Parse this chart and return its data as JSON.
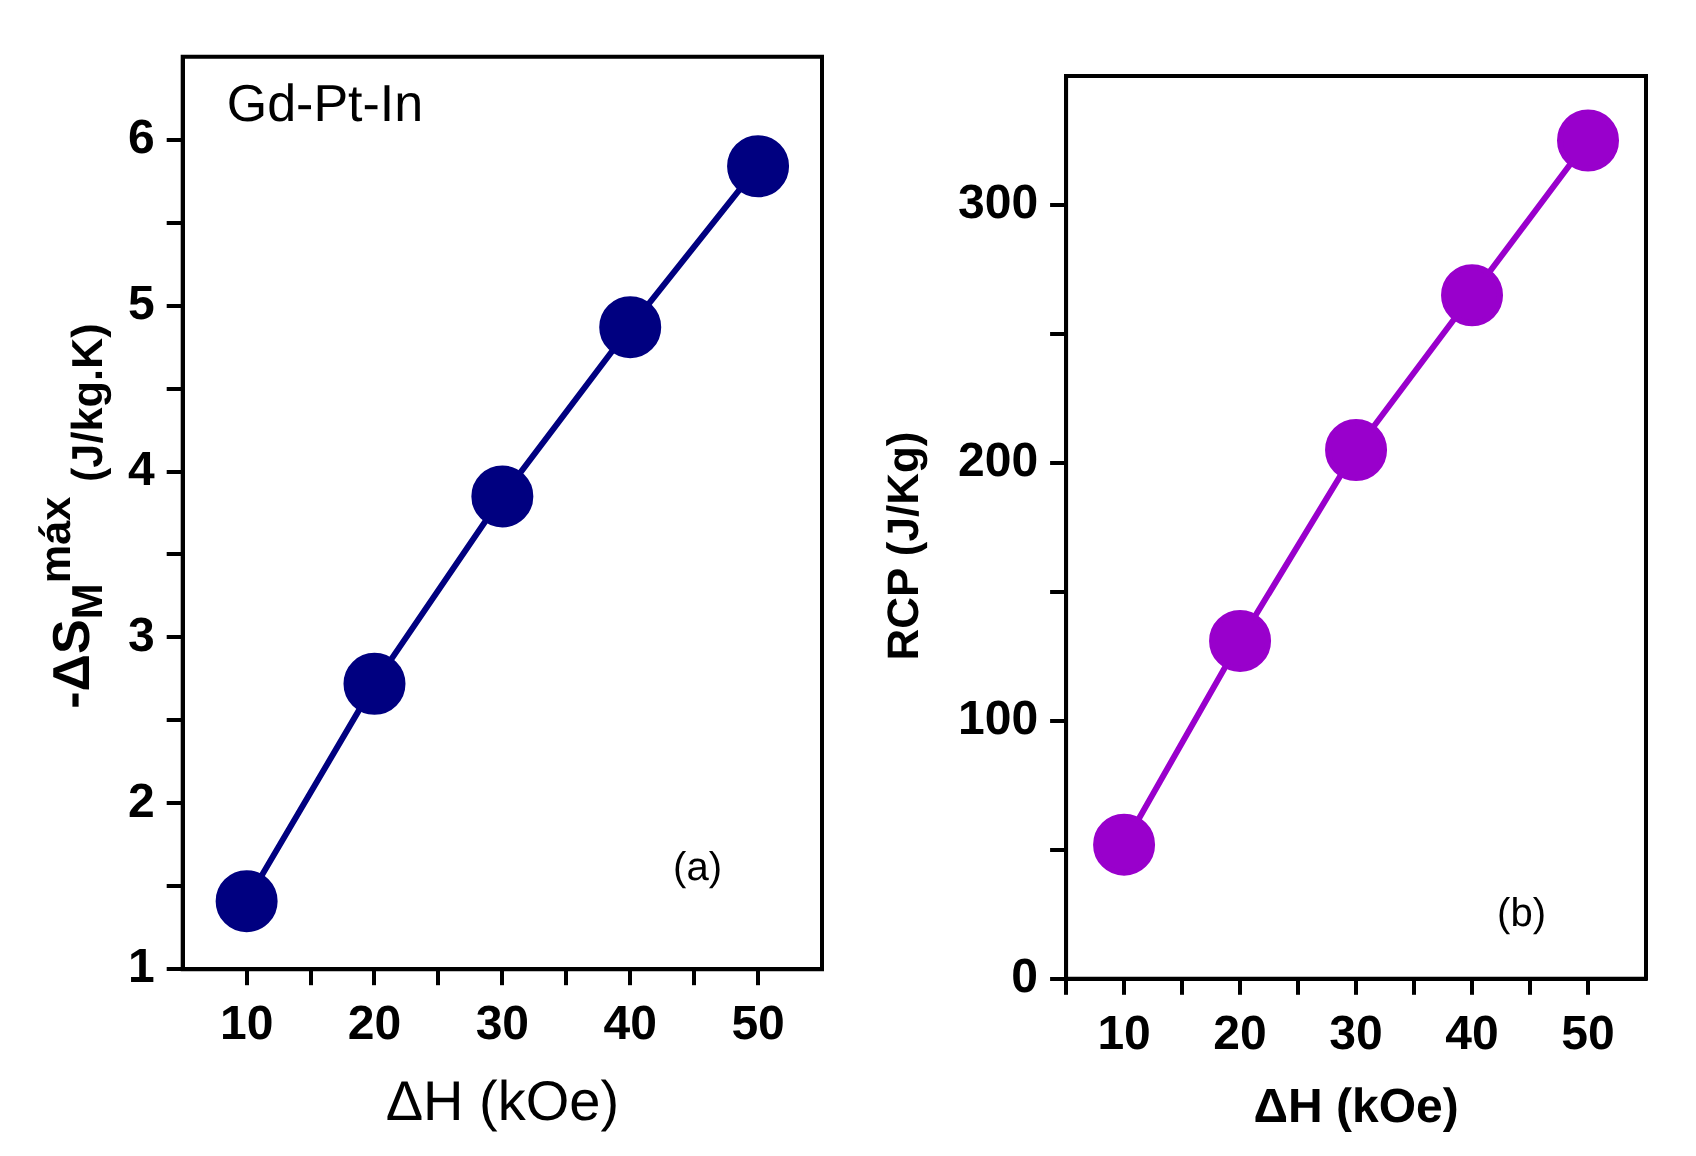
{
  "chart_data": [
    {
      "type": "line",
      "xlabel": "ΔH (kOe)",
      "ylabel": "-ΔS$_{M}$$^{máx}$ $_{(J/kg.K)}$",
      "annotations": [
        "Gd-Pt-In",
        "(a)"
      ],
      "x": [
        10,
        20,
        30,
        40,
        50
      ],
      "series": [
        {
          "color": "#000080",
          "values": [
            1.41,
            2.72,
            3.85,
            4.87,
            5.84
          ]
        }
      ],
      "xlim": [
        5,
        55
      ],
      "xticks": [
        10,
        {
          "value": 15,
          "label": null
        },
        20,
        {
          "value": 25,
          "label": null
        },
        30,
        {
          "value": 35,
          "label": null
        },
        40,
        {
          "value": 45,
          "label": null
        },
        50
      ],
      "ylim": [
        1,
        6.5
      ],
      "yticks": [
        1,
        {
          "value": 1.5,
          "label": null
        },
        2,
        {
          "value": 2.5,
          "label": null
        },
        3,
        {
          "value": 3.5,
          "label": null
        },
        4,
        {
          "value": 4.5,
          "label": null
        },
        5,
        {
          "value": 5.5,
          "label": null
        },
        6
      ],
      "marker": "circle",
      "grid": false,
      "legend": false
    },
    {
      "type": "line",
      "xlabel": "ΔH (kOe)",
      "ylabel": "RCP (J/Kg)",
      "annotations": [
        "(b)"
      ],
      "x": [
        10,
        20,
        30,
        40,
        50
      ],
      "series": [
        {
          "color": "#9900cc",
          "values": [
            52,
            131,
            205,
            265,
            325
          ]
        }
      ],
      "xlim": [
        5,
        55
      ],
      "xticks": [
        {
          "value": 5,
          "label": null
        },
        10,
        {
          "value": 15,
          "label": null
        },
        20,
        {
          "value": 25,
          "label": null
        },
        30,
        {
          "value": 35,
          "label": null
        },
        40,
        {
          "value": 45,
          "label": null
        },
        50
      ],
      "ylim": [
        0,
        350
      ],
      "yticks": [
        0,
        {
          "value": 50,
          "label": null
        },
        100,
        {
          "value": 150,
          "label": null
        },
        200,
        {
          "value": 250,
          "label": null
        },
        300
      ],
      "marker": "circle",
      "grid": false,
      "legend": false
    }
  ]
}
